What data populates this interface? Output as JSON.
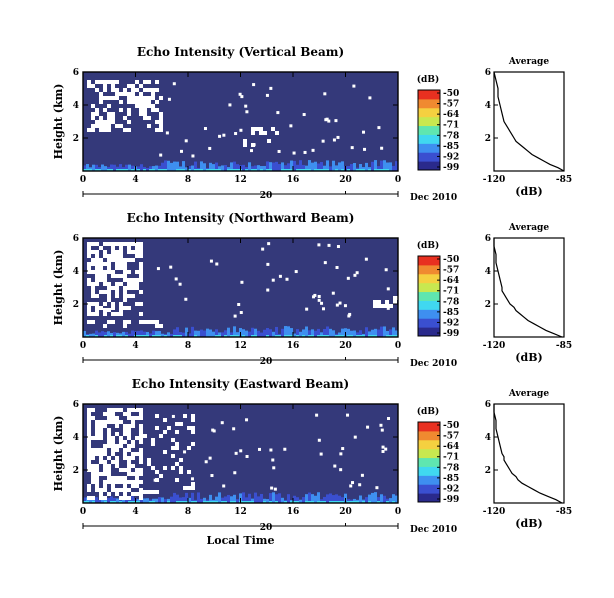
{
  "colors": {
    "background": "#34397a",
    "colorbar": [
      "#2a2a8c",
      "#3a4fd0",
      "#3e8ff0",
      "#40d8f0",
      "#5fe6b0",
      "#c8e850",
      "#f5d040",
      "#f08a30",
      "#e83020"
    ]
  },
  "chart_data": [
    {
      "type": "heatmap",
      "title": "Echo Intensity (Vertical Beam)",
      "ylabel": "Height (km)",
      "yticks": [
        "2",
        "4",
        "6"
      ],
      "ylim": [
        0,
        6
      ],
      "xticks": [
        "0",
        "4",
        "8",
        "12",
        "16",
        "20",
        "0"
      ],
      "xlim": [
        0,
        24
      ],
      "date_tick": "20",
      "date_label": "Dec 2010",
      "colorbar": {
        "unit": "(dB)",
        "ticks": [
          "-50",
          "-57",
          "-64",
          "-71",
          "-78",
          "-85",
          "-92",
          "-99"
        ]
      },
      "profile": {
        "title": "Average",
        "xlabel": "(dB)",
        "xticks": [
          "-120",
          "-85"
        ],
        "xlim": [
          -120,
          -85
        ],
        "yticks": [
          "2",
          "4",
          "6"
        ],
        "ylim": [
          0,
          6
        ],
        "heights": [
          0.0,
          0.2,
          0.4,
          0.6,
          0.8,
          1.0,
          1.2,
          1.4,
          1.6,
          1.8,
          2.0,
          2.2,
          2.4,
          2.6,
          2.8,
          3.0,
          3.5,
          4.0,
          4.5,
          5.0,
          5.5,
          6.0
        ],
        "values": [
          -85,
          -88,
          -92,
          -95,
          -98,
          -101,
          -103,
          -105,
          -107,
          -109,
          -110,
          -111,
          -112,
          -113,
          -114,
          -115,
          -116,
          -117,
          -118,
          -118,
          -119,
          -120
        ]
      }
    },
    {
      "type": "heatmap",
      "title": "Echo Intensity (Northward Beam)",
      "ylabel": "Height (km)",
      "yticks": [
        "2",
        "4",
        "6"
      ],
      "ylim": [
        0,
        6
      ],
      "xticks": [
        "0",
        "4",
        "8",
        "12",
        "16",
        "20",
        "0"
      ],
      "xlim": [
        0,
        24
      ],
      "date_tick": "20",
      "date_label": "Dec 2010",
      "colorbar": {
        "unit": "(dB)",
        "ticks": [
          "-50",
          "-57",
          "-64",
          "-71",
          "-78",
          "-85",
          "-92",
          "-99"
        ]
      },
      "profile": {
        "title": "Average",
        "xlabel": "(dB)",
        "xticks": [
          "-120",
          "-85"
        ],
        "xlim": [
          -120,
          -85
        ],
        "yticks": [
          "2",
          "4",
          "6"
        ],
        "ylim": [
          0,
          6
        ],
        "heights": [
          0.0,
          0.2,
          0.4,
          0.6,
          0.8,
          1.0,
          1.2,
          1.4,
          1.6,
          1.8,
          2.0,
          2.2,
          2.4,
          2.6,
          2.8,
          3.0,
          3.5,
          4.0,
          4.5,
          5.0,
          5.5,
          6.0
        ],
        "values": [
          -86,
          -90,
          -94,
          -97,
          -100,
          -103,
          -105,
          -107,
          -109,
          -110,
          -112,
          -113,
          -114,
          -115,
          -116,
          -116,
          -117,
          -118,
          -119,
          -119,
          -120,
          -120
        ]
      }
    },
    {
      "type": "heatmap",
      "title": "Echo Intensity (Eastward Beam)",
      "ylabel": "Height (km)",
      "yticks": [
        "2",
        "4",
        "6"
      ],
      "ylim": [
        0,
        6
      ],
      "xticks": [
        "0",
        "4",
        "8",
        "12",
        "16",
        "20",
        "0"
      ],
      "xlim": [
        0,
        24
      ],
      "date_tick": "20",
      "date_label": "Dec 2010",
      "xlabel": "Local Time",
      "colorbar": {
        "unit": "(dB)",
        "ticks": [
          "-50",
          "-57",
          "-64",
          "-71",
          "-78",
          "-85",
          "-92",
          "-99"
        ]
      },
      "profile": {
        "title": "Average",
        "xlabel": "(dB)",
        "xticks": [
          "-120",
          "-85"
        ],
        "xlim": [
          -120,
          -85
        ],
        "yticks": [
          "2",
          "4",
          "6"
        ],
        "ylim": [
          0,
          6
        ],
        "heights": [
          0.0,
          0.2,
          0.4,
          0.6,
          0.8,
          1.0,
          1.2,
          1.4,
          1.6,
          1.8,
          2.0,
          2.2,
          2.4,
          2.6,
          2.8,
          3.0,
          3.5,
          4.0,
          4.5,
          5.0,
          5.5,
          6.0
        ],
        "values": [
          -86,
          -89,
          -93,
          -97,
          -100,
          -103,
          -106,
          -108,
          -109,
          -111,
          -112,
          -113,
          -114,
          -115,
          -115,
          -116,
          -117,
          -118,
          -119,
          -119,
          -120,
          -120
        ]
      }
    }
  ]
}
